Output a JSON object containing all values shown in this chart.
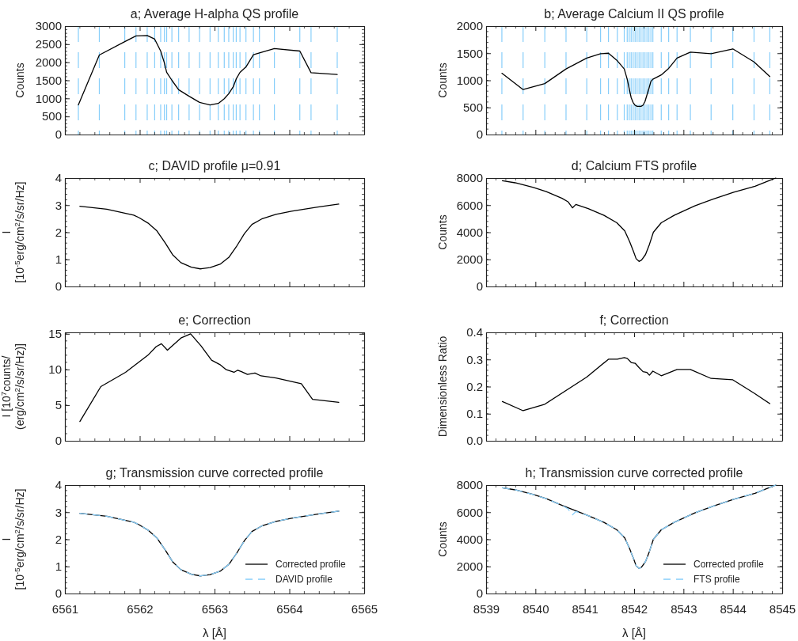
{
  "chart_data": [
    {
      "type": "line",
      "title": "a; Average H-alpha QS profile",
      "ylabel": "Counts",
      "xlim": [
        6561,
        6565
      ],
      "xticks": [
        6561,
        6562,
        6563,
        6564,
        6565
      ],
      "ylim": [
        0,
        3000
      ],
      "yticks": [
        0,
        500,
        1000,
        1500,
        2000,
        2500,
        3000
      ],
      "tick_labels": "y",
      "color": "#000000",
      "x": [
        6561.18,
        6561.46,
        6561.8,
        6561.95,
        6562.1,
        6562.2,
        6562.28,
        6562.33,
        6562.36,
        6562.43,
        6562.52,
        6562.66,
        6562.8,
        6562.94,
        6563.05,
        6563.13,
        6563.19,
        6563.25,
        6563.29,
        6563.34,
        6563.42,
        6563.52,
        6563.6,
        6563.8,
        6564.14,
        6564.29,
        6564.64
      ],
      "values": [
        820,
        2200,
        2570,
        2730,
        2740,
        2640,
        2310,
        1980,
        1720,
        1500,
        1240,
        1060,
        890,
        820,
        860,
        990,
        1130,
        1320,
        1540,
        1720,
        1870,
        2210,
        2260,
        2380,
        2310,
        1710,
        1660
      ],
      "ref_lines": [
        {
          "axis": "x",
          "value": 6561.18,
          "color": "#87cefa",
          "line_style": "dashed"
        },
        {
          "axis": "x",
          "value": 6561.46,
          "color": "#87cefa",
          "line_style": "dashed"
        },
        {
          "axis": "x",
          "value": 6561.8,
          "color": "#87cefa",
          "line_style": "dashed"
        },
        {
          "axis": "x",
          "value": 6561.95,
          "color": "#87cefa",
          "line_style": "dashed"
        },
        {
          "axis": "x",
          "value": 6562.1,
          "color": "#87cefa",
          "line_style": "dashed"
        },
        {
          "axis": "x",
          "value": 6562.2,
          "color": "#87cefa",
          "line_style": "dashed"
        },
        {
          "axis": "x",
          "value": 6562.28,
          "color": "#87cefa",
          "line_style": "dashed"
        },
        {
          "axis": "x",
          "value": 6562.33,
          "color": "#87cefa",
          "line_style": "dashed"
        },
        {
          "axis": "x",
          "value": 6562.36,
          "color": "#87cefa",
          "line_style": "dashed"
        },
        {
          "axis": "x",
          "value": 6562.43,
          "color": "#87cefa",
          "line_style": "dashed"
        },
        {
          "axis": "x",
          "value": 6562.52,
          "color": "#87cefa",
          "line_style": "dashed"
        },
        {
          "axis": "x",
          "value": 6562.66,
          "color": "#87cefa",
          "line_style": "dashed"
        },
        {
          "axis": "x",
          "value": 6562.8,
          "color": "#87cefa",
          "line_style": "dashed"
        },
        {
          "axis": "x",
          "value": 6562.94,
          "color": "#87cefa",
          "line_style": "dashed"
        },
        {
          "axis": "x",
          "value": 6563.05,
          "color": "#87cefa",
          "line_style": "dashed"
        },
        {
          "axis": "x",
          "value": 6563.13,
          "color": "#87cefa",
          "line_style": "dashed"
        },
        {
          "axis": "x",
          "value": 6563.19,
          "color": "#87cefa",
          "line_style": "dashed"
        },
        {
          "axis": "x",
          "value": 6563.25,
          "color": "#87cefa",
          "line_style": "dashed"
        },
        {
          "axis": "x",
          "value": 6563.29,
          "color": "#87cefa",
          "line_style": "dashed"
        },
        {
          "axis": "x",
          "value": 6563.34,
          "color": "#87cefa",
          "line_style": "dashed"
        },
        {
          "axis": "x",
          "value": 6563.42,
          "color": "#87cefa",
          "line_style": "dashed"
        },
        {
          "axis": "x",
          "value": 6563.52,
          "color": "#87cefa",
          "line_style": "dashed"
        },
        {
          "axis": "x",
          "value": 6563.6,
          "color": "#87cefa",
          "line_style": "dashed"
        },
        {
          "axis": "x",
          "value": 6563.8,
          "color": "#87cefa",
          "line_style": "dashed"
        },
        {
          "axis": "x",
          "value": 6564.14,
          "color": "#87cefa",
          "line_style": "dashed"
        },
        {
          "axis": "x",
          "value": 6564.29,
          "color": "#87cefa",
          "line_style": "dashed"
        },
        {
          "axis": "x",
          "value": 6564.64,
          "color": "#87cefa",
          "line_style": "dashed"
        }
      ]
    },
    {
      "type": "line",
      "title": "b; Average Calcium II QS profile",
      "ylabel": "Counts",
      "xlim": [
        8539,
        8545
      ],
      "xticks": [
        8539,
        8540,
        8541,
        8542,
        8543,
        8544,
        8545
      ],
      "ylim": [
        0,
        2000
      ],
      "yticks": [
        0,
        500,
        1000,
        1500,
        2000
      ],
      "tick_labels": "y",
      "color": "#000000",
      "x": [
        8539.32,
        8539.75,
        8540.19,
        8540.62,
        8541.04,
        8541.32,
        8541.48,
        8541.66,
        8541.8,
        8541.86,
        8541.9,
        8541.94,
        8541.98,
        8542.02,
        8542.06,
        8542.1,
        8542.14,
        8542.18,
        8542.22,
        8542.26,
        8542.3,
        8542.34,
        8542.38,
        8542.55,
        8542.7,
        8542.87,
        8543.14,
        8543.56,
        8544.0,
        8544.43,
        8544.75
      ],
      "values": [
        1130,
        830,
        940,
        1210,
        1410,
        1490,
        1500,
        1360,
        1210,
        1020,
        850,
        680,
        590,
        540,
        520,
        520,
        520,
        540,
        610,
        730,
        850,
        980,
        1020,
        1100,
        1220,
        1410,
        1520,
        1490,
        1580,
        1340,
        1070
      ],
      "ref_lines": [
        {
          "axis": "x",
          "value": 8539.32,
          "color": "#87cefa",
          "line_style": "dashed"
        },
        {
          "axis": "x",
          "value": 8539.75,
          "color": "#87cefa",
          "line_style": "dashed"
        },
        {
          "axis": "x",
          "value": 8540.19,
          "color": "#87cefa",
          "line_style": "dashed"
        },
        {
          "axis": "x",
          "value": 8540.62,
          "color": "#87cefa",
          "line_style": "dashed"
        },
        {
          "axis": "x",
          "value": 8541.04,
          "color": "#87cefa",
          "line_style": "dashed"
        },
        {
          "axis": "x",
          "value": 8541.32,
          "color": "#87cefa",
          "line_style": "dashed"
        },
        {
          "axis": "x",
          "value": 8541.48,
          "color": "#87cefa",
          "line_style": "dashed"
        },
        {
          "axis": "x",
          "value": 8541.66,
          "color": "#87cefa",
          "line_style": "dashed"
        },
        {
          "axis": "x",
          "value": 8541.8,
          "color": "#87cefa",
          "line_style": "dashed"
        },
        {
          "axis": "x",
          "value": 8541.86,
          "color": "#87cefa",
          "line_style": "dashed"
        },
        {
          "axis": "x",
          "value": 8541.9,
          "color": "#87cefa",
          "line_style": "dashed"
        },
        {
          "axis": "x",
          "value": 8541.94,
          "color": "#87cefa",
          "line_style": "dashed"
        },
        {
          "axis": "x",
          "value": 8541.98,
          "color": "#87cefa",
          "line_style": "dashed"
        },
        {
          "axis": "x",
          "value": 8542.02,
          "color": "#87cefa",
          "line_style": "dashed"
        },
        {
          "axis": "x",
          "value": 8542.06,
          "color": "#87cefa",
          "line_style": "dashed"
        },
        {
          "axis": "x",
          "value": 8542.1,
          "color": "#87cefa",
          "line_style": "dashed"
        },
        {
          "axis": "x",
          "value": 8542.14,
          "color": "#87cefa",
          "line_style": "dashed"
        },
        {
          "axis": "x",
          "value": 8542.18,
          "color": "#87cefa",
          "line_style": "dashed"
        },
        {
          "axis": "x",
          "value": 8542.22,
          "color": "#87cefa",
          "line_style": "dashed"
        },
        {
          "axis": "x",
          "value": 8542.26,
          "color": "#87cefa",
          "line_style": "dashed"
        },
        {
          "axis": "x",
          "value": 8542.3,
          "color": "#87cefa",
          "line_style": "dashed"
        },
        {
          "axis": "x",
          "value": 8542.34,
          "color": "#87cefa",
          "line_style": "dashed"
        },
        {
          "axis": "x",
          "value": 8542.38,
          "color": "#87cefa",
          "line_style": "dashed"
        },
        {
          "axis": "x",
          "value": 8542.55,
          "color": "#87cefa",
          "line_style": "dashed"
        },
        {
          "axis": "x",
          "value": 8542.7,
          "color": "#87cefa",
          "line_style": "dashed"
        },
        {
          "axis": "x",
          "value": 8542.87,
          "color": "#87cefa",
          "line_style": "dashed"
        },
        {
          "axis": "x",
          "value": 8543.14,
          "color": "#87cefa",
          "line_style": "dashed"
        },
        {
          "axis": "x",
          "value": 8543.56,
          "color": "#87cefa",
          "line_style": "dashed"
        },
        {
          "axis": "x",
          "value": 8544.0,
          "color": "#87cefa",
          "line_style": "dashed"
        },
        {
          "axis": "x",
          "value": 8544.43,
          "color": "#87cefa",
          "line_style": "dashed"
        },
        {
          "axis": "x",
          "value": 8544.75,
          "color": "#87cefa",
          "line_style": "dashed"
        }
      ]
    },
    {
      "type": "line",
      "title": "c; DAVID profile μ=0.91",
      "ylabel": "I\n[10$^{-5}$erg/cm$^{2}$/s/sr/Hz]",
      "xlim": [
        6561,
        6565
      ],
      "xticks": [
        6561,
        6562,
        6563,
        6564,
        6565
      ],
      "ylim": [
        0,
        4
      ],
      "yticks": [
        0,
        1,
        2,
        3,
        4
      ],
      "tick_labels": "y",
      "color": "#000000",
      "x": [
        6561.2,
        6561.56,
        6561.92,
        6561.99,
        6562.11,
        6562.23,
        6562.34,
        6562.44,
        6562.55,
        6562.69,
        6562.81,
        6562.94,
        6563.08,
        6563.19,
        6563.29,
        6563.4,
        6563.5,
        6563.63,
        6563.82,
        6564.03,
        6564.38,
        6564.66
      ],
      "values": [
        2.96,
        2.85,
        2.63,
        2.54,
        2.34,
        2.05,
        1.61,
        1.17,
        0.88,
        0.71,
        0.65,
        0.7,
        0.83,
        1.07,
        1.46,
        1.95,
        2.29,
        2.49,
        2.66,
        2.78,
        2.93,
        3.04
      ]
    },
    {
      "type": "line",
      "title": "d; Calcium FTS profile",
      "ylabel": "Counts",
      "xlim": [
        8539,
        8545
      ],
      "xticks": [
        8539,
        8540,
        8541,
        8542,
        8543,
        8544,
        8545
      ],
      "ylim": [
        0,
        8000
      ],
      "yticks": [
        0,
        2000,
        4000,
        6000,
        8000
      ],
      "tick_labels": "y",
      "color": "#000000",
      "x": [
        8539.33,
        8539.59,
        8539.96,
        8540.22,
        8540.54,
        8540.66,
        8540.75,
        8540.82,
        8541.07,
        8541.39,
        8541.65,
        8541.81,
        8541.91,
        8541.99,
        8542.04,
        8542.1,
        8542.15,
        8542.23,
        8542.31,
        8542.39,
        8542.55,
        8542.81,
        8543.23,
        8543.6,
        8544.02,
        8544.45,
        8544.76,
        8544.87
      ],
      "values": [
        7800,
        7650,
        7300,
        7000,
        6500,
        6250,
        5800,
        6050,
        5750,
        5250,
        4700,
        4100,
        3300,
        2550,
        2050,
        1850,
        1950,
        2350,
        3100,
        4000,
        4700,
        5250,
        5950,
        6450,
        6950,
        7400,
        7850,
        8000
      ]
    },
    {
      "type": "line",
      "title": "e; Correction",
      "ylabel": "I [10$^{7}$counts/\n(erg/cm$^{2}$/s/sr/Hz)]",
      "xlim": [
        6561,
        6565
      ],
      "xticks": [
        6561,
        6562,
        6563,
        6564,
        6565
      ],
      "ylim": [
        0,
        15.2
      ],
      "yticks": [
        0,
        5,
        10,
        15
      ],
      "tick_labels": "y",
      "color": "#000000",
      "x": [
        6561.2,
        6561.48,
        6561.81,
        6562.11,
        6562.22,
        6562.29,
        6562.37,
        6562.55,
        6562.68,
        6562.82,
        6562.96,
        6563.07,
        6563.15,
        6563.26,
        6563.31,
        6563.36,
        6563.44,
        6563.54,
        6563.62,
        6563.82,
        6564.16,
        6564.31,
        6564.66
      ],
      "values": [
        2.7,
        7.6,
        9.6,
        12.0,
        13.2,
        13.6,
        12.7,
        14.4,
        15.0,
        13.3,
        11.3,
        10.7,
        10.0,
        9.6,
        9.9,
        9.7,
        9.3,
        9.5,
        9.1,
        8.8,
        8.0,
        5.8,
        5.4
      ]
    },
    {
      "type": "line",
      "title": "f; Correction",
      "ylabel": "Dimensionless Ratio",
      "xlim": [
        8539,
        8545
      ],
      "xticks": [
        8539,
        8540,
        8541,
        8542,
        8543,
        8544,
        8545
      ],
      "ylim": [
        0,
        0.4
      ],
      "yticks": [
        {
          "value": 0,
          "label": "0.0"
        },
        0.1,
        0.2,
        0.3,
        0.4
      ],
      "tick_labels": "y",
      "color": "#000000",
      "x": [
        8539.33,
        8539.75,
        8540.19,
        8541.04,
        8541.48,
        8541.66,
        8541.8,
        8541.86,
        8541.94,
        8542.02,
        8542.1,
        8542.18,
        8542.26,
        8542.31,
        8542.38,
        8542.55,
        8542.87,
        8543.14,
        8543.56,
        8544.0,
        8544.43,
        8544.75
      ],
      "values": [
        0.145,
        0.111,
        0.135,
        0.235,
        0.301,
        0.301,
        0.307,
        0.304,
        0.289,
        0.286,
        0.27,
        0.255,
        0.252,
        0.242,
        0.257,
        0.24,
        0.263,
        0.263,
        0.23,
        0.225,
        0.176,
        0.137
      ]
    },
    {
      "type": "line",
      "title": "g; Transmission curve corrected profile",
      "ylabel": "I\n[10$^{-5}$erg/cm$^{2}$/s/sr/Hz]",
      "xlabel": "λ [Å]",
      "xlim": [
        6561,
        6565
      ],
      "xticks": [
        6561,
        6562,
        6563,
        6564,
        6565
      ],
      "ylim": [
        0,
        4
      ],
      "yticks": [
        0,
        1,
        2,
        3,
        4
      ],
      "legend": "bottom right",
      "x": [
        6561.2,
        6561.56,
        6561.92,
        6561.99,
        6562.11,
        6562.23,
        6562.34,
        6562.44,
        6562.55,
        6562.69,
        6562.81,
        6562.94,
        6563.08,
        6563.19,
        6563.29,
        6563.4,
        6563.5,
        6563.63,
        6563.82,
        6564.03,
        6564.38,
        6564.66
      ],
      "series": [
        {
          "name": "Corrected profile",
          "color": "#000000",
          "values": [
            2.96,
            2.85,
            2.63,
            2.54,
            2.34,
            2.05,
            1.61,
            1.17,
            0.88,
            0.71,
            0.65,
            0.7,
            0.83,
            1.07,
            1.46,
            1.95,
            2.29,
            2.49,
            2.66,
            2.78,
            2.93,
            3.04
          ]
        },
        {
          "name": "DAVID profile",
          "color": "#87cefa",
          "line_style": "dashed",
          "values": [
            2.96,
            2.85,
            2.63,
            2.54,
            2.34,
            2.05,
            1.61,
            1.17,
            0.88,
            0.71,
            0.65,
            0.7,
            0.83,
            1.07,
            1.46,
            1.95,
            2.29,
            2.49,
            2.66,
            2.78,
            2.93,
            3.04
          ]
        }
      ]
    },
    {
      "type": "line",
      "title": "h; Transmission curve corrected profile",
      "ylabel": "Counts",
      "xlabel": "λ [Å]",
      "xlim": [
        8539,
        8545
      ],
      "xticks": [
        8539,
        8540,
        8541,
        8542,
        8543,
        8544,
        8545
      ],
      "ylim": [
        0,
        8000
      ],
      "yticks": [
        0,
        2000,
        4000,
        6000,
        8000
      ],
      "legend": "bottom right",
      "series": [
        {
          "name": "Corrected profile",
          "color": "#000000",
          "x": [
            8539.33,
            8539.59,
            8539.96,
            8540.22,
            8540.54,
            8541.07,
            8541.39,
            8541.65,
            8541.81,
            8541.91,
            8541.99,
            8542.04,
            8542.1,
            8542.15,
            8542.23,
            8542.31,
            8542.39,
            8542.55,
            8542.81,
            8543.23,
            8543.6,
            8544.02,
            8544.45,
            8544.76,
            8544.87
          ],
          "values": [
            7800,
            7650,
            7300,
            7000,
            6500,
            5750,
            5250,
            4700,
            4100,
            3300,
            2550,
            2050,
            1850,
            1950,
            2350,
            3100,
            4000,
            4700,
            5250,
            5950,
            6450,
            6950,
            7400,
            7850,
            8000
          ]
        },
        {
          "name": "FTS profile",
          "color": "#87cefa",
          "line_style": "dashed",
          "x": [
            8539.33,
            8539.59,
            8539.96,
            8540.22,
            8540.54,
            8540.66,
            8540.75,
            8540.82,
            8541.07,
            8541.39,
            8541.65,
            8541.81,
            8541.91,
            8541.99,
            8542.04,
            8542.1,
            8542.15,
            8542.23,
            8542.31,
            8542.39,
            8542.55,
            8542.81,
            8543.23,
            8543.6,
            8544.02,
            8544.45,
            8544.76,
            8544.87
          ],
          "values": [
            7800,
            7650,
            7300,
            7000,
            6500,
            6250,
            5800,
            6050,
            5750,
            5250,
            4700,
            4100,
            3300,
            2550,
            2050,
            1850,
            1950,
            2350,
            3100,
            4000,
            4700,
            5250,
            5950,
            6450,
            6950,
            7400,
            7850,
            8000
          ]
        }
      ]
    }
  ]
}
